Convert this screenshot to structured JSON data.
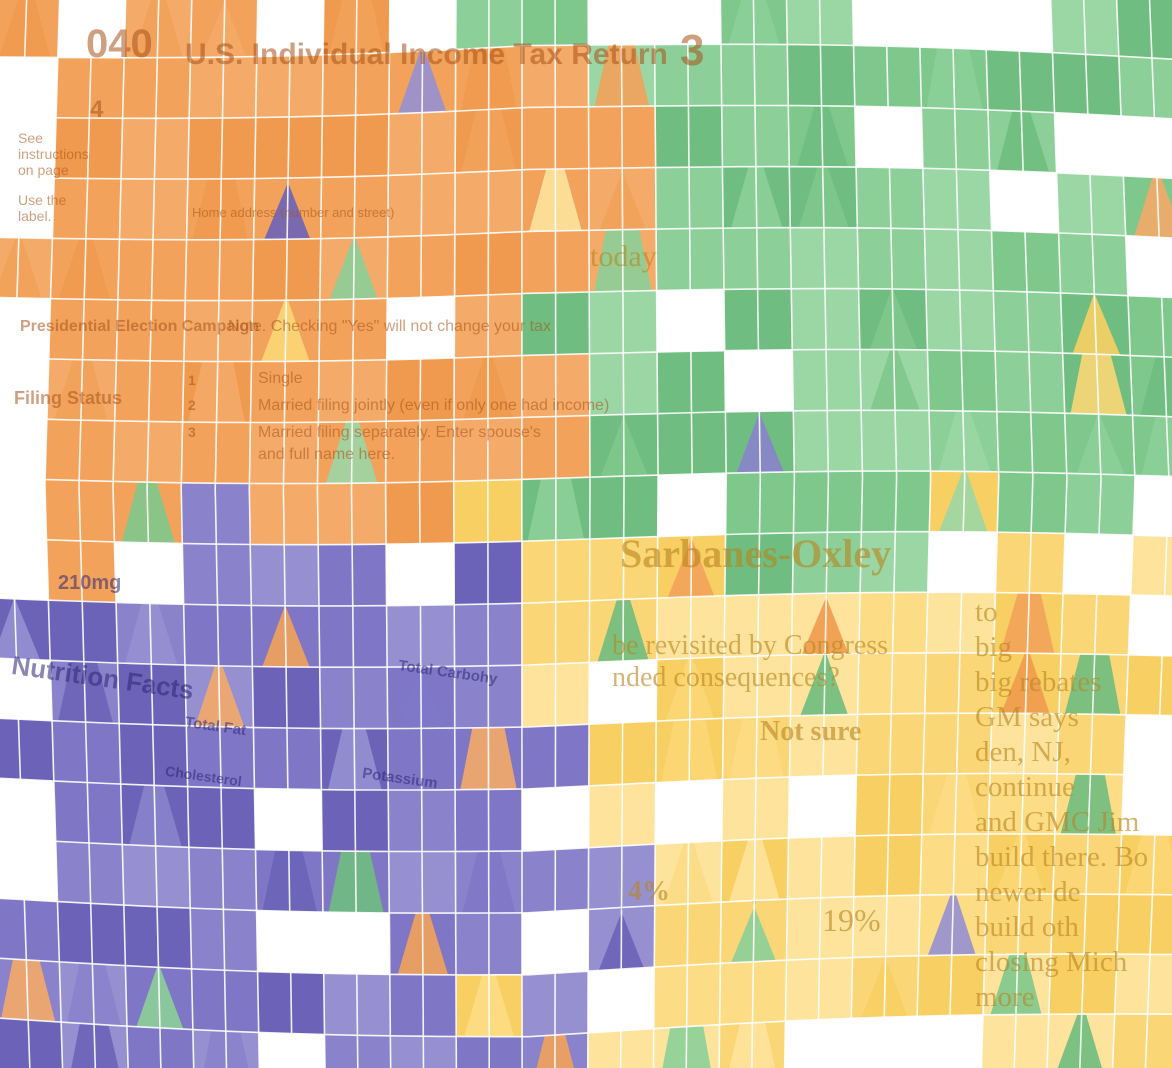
{
  "scene": {
    "description_colors": {
      "orange": "#f0a45e",
      "green": "#7cc48a",
      "purple": "#8a82c9",
      "yellow": "#fbd97a",
      "grid_line": "#ffffff"
    }
  },
  "texts": {
    "tax_form": {
      "form_number": "040",
      "title": "U.S. Individual Income Tax Return",
      "year_digit": "3",
      "see_instructions": "See instructions on page",
      "use_label": "Use the label.",
      "presidential": "Presidential Election Campaign",
      "filing_status": "Filing Status",
      "note": "Note. Checking \"Yes\" will not change your tax",
      "single": "Single",
      "married_joint": "Married filing jointly (even if only one had income)",
      "married_separate": "Married filing separately. Enter spouse's",
      "full_name": "and full name here.",
      "home_address": "Home address (number and street)",
      "numbers": [
        "1",
        "2",
        "3",
        "4"
      ]
    },
    "newspaper": {
      "headline": "Sarbanes-Oxley",
      "question_line1": "be revisited by Congress",
      "question_line2": "nded consequences?",
      "not_sure": "Not sure",
      "pct_a": "4%",
      "pct_b": "19%",
      "today": "today",
      "column": [
        "to",
        "big",
        "big rebates",
        "GM says",
        "den, NJ,",
        "continue",
        "and GMC Jim",
        "build there. Bo",
        "newer de",
        "build oth",
        "closing Mich",
        "more"
      ]
    },
    "nutrition": {
      "title": "Nutrition Facts",
      "sodium": "210mg",
      "total_fat": "Total Fat",
      "cholesterol": "Cholesterol",
      "potassium": "Potassium",
      "total_carb": "Total Carbohy"
    }
  }
}
